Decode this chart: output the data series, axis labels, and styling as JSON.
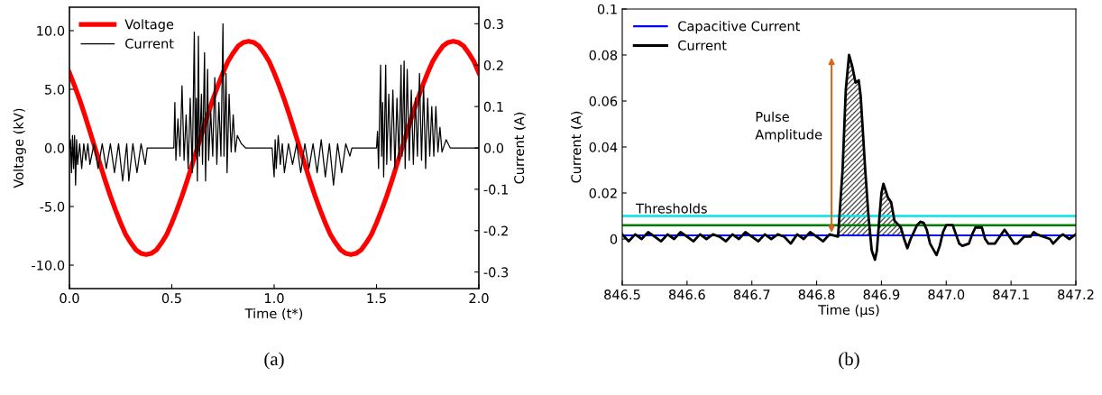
{
  "chart_data": [
    {
      "type": "line",
      "xlabel": "Time (t*)",
      "ylabel": "Voltage (kV)",
      "y2label": "Current (A)",
      "xlim": [
        0,
        2
      ],
      "xticks": [
        {
          "value": 0,
          "label": "0.0"
        },
        {
          "value": 0.5,
          "label": "0.5"
        },
        {
          "value": 1,
          "label": "1.0"
        },
        {
          "value": 1.5,
          "label": "1.5"
        },
        {
          "value": 2,
          "label": "2.0"
        }
      ],
      "ylim": [
        -12,
        12
      ],
      "yticks": [
        {
          "value": -10,
          "label": "-10.0"
        },
        {
          "value": -5,
          "label": "-5.0"
        },
        {
          "value": 0,
          "label": "0.0"
        },
        {
          "value": 5,
          "label": "5.0"
        },
        {
          "value": 10,
          "label": "10.0"
        }
      ],
      "y2lim": [
        -0.34,
        0.34
      ],
      "y2ticks": [
        {
          "value": -0.3,
          "label": "-0.3"
        },
        {
          "value": -0.2,
          "label": "-0.2"
        },
        {
          "value": -0.1,
          "label": "-0.1"
        },
        {
          "value": 0,
          "label": "0.0"
        },
        {
          "value": 0.1,
          "label": "0.1"
        },
        {
          "value": 0.2,
          "label": "0.2"
        },
        {
          "value": 0.3,
          "label": "0.3"
        }
      ],
      "legend": "top left",
      "grid": false,
      "annotations": [
        "(a)"
      ],
      "series": [
        {
          "name": "Voltage",
          "color": "#ff0000",
          "x": [
            0,
            0.025,
            0.05,
            0.075,
            0.1,
            0.125,
            0.15,
            0.175,
            0.2,
            0.225,
            0.25,
            0.275,
            0.3,
            0.325,
            0.35,
            0.375,
            0.4,
            0.425,
            0.45,
            0.475,
            0.5,
            0.525,
            0.55,
            0.575,
            0.6,
            0.625,
            0.65,
            0.675,
            0.7,
            0.725,
            0.75,
            0.775,
            0.8,
            0.825,
            0.85,
            0.875,
            0.9,
            0.925,
            0.95,
            0.975,
            1.0,
            1.025,
            1.05,
            1.075,
            1.1,
            1.125,
            1.15,
            1.175,
            1.2,
            1.225,
            1.25,
            1.275,
            1.3,
            1.325,
            1.35,
            1.375,
            1.4,
            1.425,
            1.45,
            1.475,
            1.5,
            1.525,
            1.55,
            1.575,
            1.6,
            1.625,
            1.65,
            1.675,
            1.7,
            1.725,
            1.75,
            1.775,
            1.8,
            1.825,
            1.85,
            1.875,
            1.9,
            1.925,
            1.95,
            1.975,
            2.0
          ],
          "values": [
            6.4,
            5.3,
            4.1,
            2.8,
            1.4,
            0,
            -1.4,
            -2.8,
            -4.1,
            -5.3,
            -6.4,
            -7.4,
            -8.1,
            -8.7,
            -9.0,
            -9.1,
            -9.0,
            -8.7,
            -8.1,
            -7.4,
            -6.4,
            -5.3,
            -4.1,
            -2.8,
            -1.4,
            0,
            1.4,
            2.8,
            4.1,
            5.3,
            6.4,
            7.4,
            8.1,
            8.7,
            9.0,
            9.1,
            9.0,
            8.7,
            8.1,
            7.4,
            6.4,
            5.3,
            4.1,
            2.8,
            1.4,
            0,
            -1.4,
            -2.8,
            -4.1,
            -5.3,
            -6.4,
            -7.4,
            -8.1,
            -8.7,
            -9.0,
            -9.1,
            -9.0,
            -8.7,
            -8.1,
            -7.4,
            -6.4,
            -5.3,
            -4.1,
            -2.8,
            -1.4,
            0,
            1.4,
            2.8,
            4.1,
            5.3,
            6.4,
            7.4,
            8.1,
            8.7,
            9.0,
            9.1,
            9.0,
            8.7,
            8.1,
            7.4,
            6.4
          ]
        },
        {
          "name": "Current",
          "color": "#000000",
          "axis": "y2",
          "x": [
            0.0,
            0.005,
            0.01,
            0.015,
            0.02,
            0.025,
            0.03,
            0.035,
            0.04,
            0.05,
            0.06,
            0.07,
            0.08,
            0.09,
            0.1,
            0.12,
            0.14,
            0.16,
            0.18,
            0.2,
            0.22,
            0.24,
            0.26,
            0.28,
            0.29,
            0.31,
            0.33,
            0.35,
            0.37,
            0.38,
            0.45,
            0.51,
            0.515,
            0.52,
            0.53,
            0.54,
            0.55,
            0.56,
            0.57,
            0.58,
            0.59,
            0.6,
            0.61,
            0.615,
            0.62,
            0.625,
            0.63,
            0.635,
            0.645,
            0.65,
            0.66,
            0.665,
            0.675,
            0.68,
            0.69,
            0.7,
            0.71,
            0.72,
            0.73,
            0.74,
            0.75,
            0.755,
            0.765,
            0.77,
            0.78,
            0.79,
            0.8,
            0.81,
            0.82,
            0.84,
            0.86,
            0.99,
            1.0,
            1.005,
            1.01,
            1.02,
            1.03,
            1.04,
            1.05,
            1.07,
            1.09,
            1.11,
            1.13,
            1.15,
            1.17,
            1.19,
            1.21,
            1.23,
            1.25,
            1.27,
            1.29,
            1.31,
            1.33,
            1.35,
            1.37,
            1.38,
            1.5,
            1.505,
            1.51,
            1.52,
            1.525,
            1.53,
            1.535,
            1.545,
            1.55,
            1.56,
            1.57,
            1.58,
            1.59,
            1.6,
            1.61,
            1.62,
            1.625,
            1.635,
            1.64,
            1.65,
            1.66,
            1.67,
            1.68,
            1.69,
            1.7,
            1.71,
            1.72,
            1.73,
            1.74,
            1.75,
            1.76,
            1.77,
            1.78,
            1.79,
            1.8,
            1.81,
            1.82,
            1.84,
            1.86,
            2.0
          ],
          "values": [
            0,
            0.02,
            -0.06,
            0.03,
            -0.05,
            0.03,
            -0.09,
            0.02,
            -0.04,
            0.01,
            -0.05,
            0.01,
            -0.03,
            0.01,
            -0.04,
            0.01,
            -0.05,
            0.01,
            -0.05,
            0.01,
            -0.06,
            0.01,
            -0.08,
            0.01,
            -0.08,
            0.01,
            -0.06,
            0.01,
            -0.04,
            0,
            0,
            0,
            0.11,
            -0.03,
            0.07,
            -0.02,
            0.15,
            -0.03,
            0.08,
            -0.05,
            0.12,
            -0.06,
            0.28,
            -0.02,
            0.12,
            -0.08,
            0.27,
            -0.02,
            0.13,
            -0.04,
            0.23,
            -0.08,
            0.19,
            -0.03,
            0.09,
            -0.02,
            0.17,
            -0.04,
            0.11,
            -0.02,
            0.3,
            -0.02,
            0.18,
            -0.06,
            0.13,
            -0.01,
            0.08,
            -0.01,
            0.03,
            0.01,
            0,
            0,
            -0.07,
            0.02,
            -0.05,
            0.03,
            -0.04,
            0.01,
            -0.06,
            0.01,
            -0.04,
            0.01,
            -0.06,
            0.01,
            -0.05,
            0.01,
            -0.06,
            0.02,
            -0.07,
            0.01,
            -0.09,
            0.01,
            -0.06,
            0.01,
            -0.02,
            0,
            0,
            0.04,
            -0.05,
            0.2,
            -0.02,
            0.11,
            -0.07,
            0.2,
            -0.04,
            0.13,
            -0.03,
            0.14,
            -0.05,
            0.12,
            -0.03,
            0.2,
            -0.02,
            0.21,
            -0.05,
            0.19,
            -0.03,
            0.14,
            -0.04,
            0.12,
            -0.02,
            0.18,
            -0.03,
            0.15,
            -0.05,
            0.12,
            -0.02,
            0.1,
            -0.02,
            0.1,
            -0.01,
            0.05,
            -0.01,
            0.02,
            0,
            0
          ]
        }
      ]
    },
    {
      "type": "line",
      "xlabel": "Time (μs)",
      "ylabel": "Current (A)",
      "xlim": [
        846.5,
        847.2
      ],
      "xticks": [
        {
          "value": 846.5,
          "label": "846.5"
        },
        {
          "value": 846.6,
          "label": "846.6"
        },
        {
          "value": 846.7,
          "label": "846.7"
        },
        {
          "value": 846.8,
          "label": "846.8"
        },
        {
          "value": 846.9,
          "label": "846.9"
        },
        {
          "value": 847.0,
          "label": "847.0"
        },
        {
          "value": 847.1,
          "label": "847.1"
        },
        {
          "value": 847.2,
          "label": "847.2"
        }
      ],
      "ylim": [
        -0.02,
        0.1
      ],
      "yticks": [
        0,
        0.02,
        0.04,
        0.06,
        0.08,
        0.1
      ],
      "legend": "top left",
      "grid": false,
      "ref_lines": [
        {
          "axis": "y",
          "value": 0.01,
          "label": "Thresholds",
          "color": "#00e5e5"
        },
        {
          "axis": "y",
          "value": 0.006,
          "color": "#008000"
        }
      ],
      "annotations": [
        "Pulse\nAmplitude",
        "(b)"
      ],
      "series": [
        {
          "name": "Capacitive Current",
          "color": "#0000ff",
          "x": [
            846.5,
            847.2
          ],
          "values": [
            0.0016,
            0.0016
          ]
        },
        {
          "name": "Current",
          "color": "#000000",
          "x": [
            846.5,
            846.51,
            846.52,
            846.53,
            846.54,
            846.55,
            846.56,
            846.57,
            846.58,
            846.59,
            846.6,
            846.61,
            846.62,
            846.63,
            846.64,
            846.65,
            846.66,
            846.67,
            846.68,
            846.69,
            846.7,
            846.71,
            846.72,
            846.73,
            846.74,
            846.75,
            846.76,
            846.77,
            846.78,
            846.79,
            846.8,
            846.81,
            846.82,
            846.833,
            846.84,
            846.845,
            846.85,
            846.855,
            846.86,
            846.865,
            846.868,
            846.875,
            846.88,
            846.885,
            846.89,
            846.893,
            846.897,
            846.9,
            846.903,
            846.91,
            846.915,
            846.92,
            846.93,
            846.935,
            846.94,
            846.945,
            846.955,
            846.96,
            846.965,
            846.97,
            846.975,
            846.985,
            846.99,
            846.995,
            847.0,
            847.01,
            847.015,
            847.02,
            847.025,
            847.035,
            847.04,
            847.045,
            847.055,
            847.06,
            847.065,
            847.075,
            847.08,
            847.09,
            847.095,
            847.1,
            847.105,
            847.11,
            847.12,
            847.13,
            847.135,
            847.14,
            847.15,
            847.16,
            847.165,
            847.175,
            847.18,
            847.19,
            847.2
          ],
          "values": [
            0.002,
            -0.001,
            0.002,
            0.0,
            0.003,
            0.001,
            -0.001,
            0.002,
            0.0,
            0.003,
            0.001,
            -0.001,
            0.002,
            0.0,
            0.002,
            0.001,
            -0.001,
            0.002,
            0.0,
            0.003,
            0.001,
            -0.001,
            0.002,
            0.0,
            0.002,
            0.001,
            -0.002,
            0.002,
            0.0,
            0.003,
            0.001,
            -0.001,
            0.002,
            0.001,
            0.03,
            0.065,
            0.08,
            0.075,
            0.068,
            0.069,
            0.062,
            0.03,
            0.01,
            -0.005,
            -0.009,
            -0.005,
            0.01,
            0.02,
            0.024,
            0.018,
            0.016,
            0.008,
            0.005,
            0.0,
            -0.004,
            0.0,
            0.006,
            0.0075,
            0.007,
            0.004,
            -0.002,
            -0.007,
            -0.003,
            0.003,
            0.006,
            0.006,
            0.002,
            -0.002,
            -0.003,
            -0.002,
            0.002,
            0.005,
            0.005,
            0.0,
            -0.002,
            -0.002,
            0.0,
            0.004,
            0.002,
            0.0,
            -0.002,
            -0.002,
            0.001,
            0.001,
            0.003,
            0.002,
            0.001,
            0.0,
            -0.002,
            0.001,
            0.002,
            0.0,
            0.002
          ]
        }
      ]
    }
  ]
}
